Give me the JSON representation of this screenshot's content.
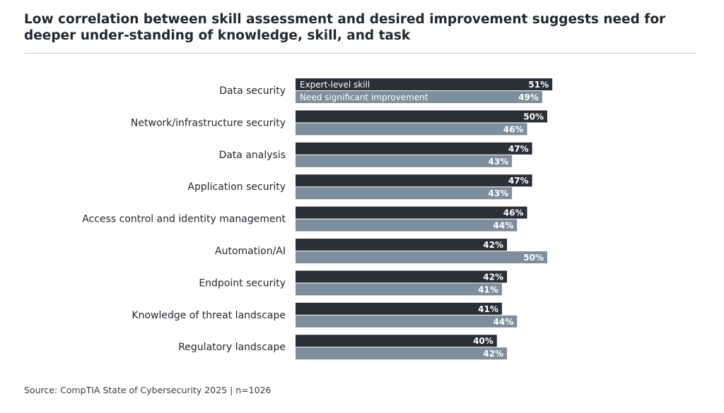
{
  "chart_data": {
    "type": "bar",
    "orientation": "horizontal",
    "title": "Low correlation between skill assessment and desired improvement suggests need for deeper under-standing of knowledge, skill, and task",
    "categories": [
      "Data security",
      "Network/infrastructure security",
      "Data analysis",
      "Application security",
      "Access control and identity management",
      "Automation/AI",
      "Endpoint security",
      "Knowledge of threat landscape",
      "Regulatory landscape"
    ],
    "series": [
      {
        "name": "Expert-level skill",
        "color": "#2a3038",
        "values": [
          51,
          50,
          47,
          47,
          46,
          42,
          42,
          41,
          40
        ]
      },
      {
        "name": "Need significant improvement",
        "color": "#7f8e9c",
        "values": [
          49,
          46,
          43,
          43,
          44,
          50,
          41,
          44,
          42
        ]
      }
    ],
    "value_suffix": "%",
    "legend_placement": "inside first bars",
    "grid": false,
    "source": "Source: CompTIA State of Cybersecurity 2025 | n=1026"
  }
}
